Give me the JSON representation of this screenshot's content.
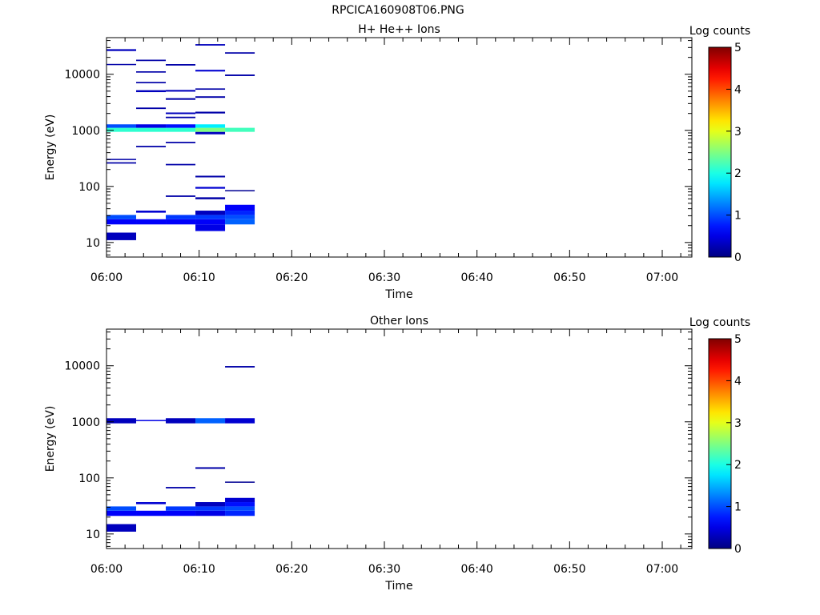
{
  "figure_title": "RPCICA160908T06.PNG",
  "chart_data": [
    {
      "type": "heatmap",
      "title": "H+ He++ Ions",
      "xlabel": "Time",
      "ylabel": "Energy (eV)",
      "yscale": "log",
      "ylim": [
        5.5,
        45000
      ],
      "x_ticks": [
        "06:00",
        "06:10",
        "06:20",
        "06:30",
        "06:40",
        "06:50",
        "07:00"
      ],
      "xlim_minutes": [
        0,
        63.2
      ],
      "y_ticks": [
        10,
        100,
        1000,
        10000
      ],
      "y_tick_labels": [
        "10",
        "100",
        "1000",
        "10000"
      ],
      "colorbar": {
        "label": "Log counts",
        "min": 0,
        "max": 5,
        "ticks": [
          "0",
          "1",
          "2",
          "3",
          "4",
          "5"
        ]
      },
      "cells": [
        {
          "t0": 0.0,
          "t1": 3.2,
          "e0": 11,
          "e1": 15,
          "v": 0.3
        },
        {
          "t0": 0.0,
          "t1": 3.2,
          "e0": 21,
          "e1": 26,
          "v": 0.6
        },
        {
          "t0": 0.0,
          "t1": 3.2,
          "e0": 26,
          "e1": 31,
          "v": 1.0
        },
        {
          "t0": 0.0,
          "t1": 3.2,
          "e0": 940,
          "e1": 1110,
          "v": 2.1
        },
        {
          "t0": 0.0,
          "t1": 3.2,
          "e0": 1110,
          "e1": 1280,
          "v": 1.0
        },
        {
          "t0": 0.0,
          "t1": 3.2,
          "e0": 255,
          "e1": 270,
          "v": 0.2
        },
        {
          "t0": 0.0,
          "t1": 3.2,
          "e0": 295,
          "e1": 310,
          "v": 0.2
        },
        {
          "t0": 0.0,
          "t1": 3.2,
          "e0": 14600,
          "e1": 15300,
          "v": 0.2
        },
        {
          "t0": 0.0,
          "t1": 3.2,
          "e0": 26000,
          "e1": 28000,
          "v": 0.3
        },
        {
          "t0": 3.2,
          "t1": 6.4,
          "e0": 21,
          "e1": 26,
          "v": 0.6
        },
        {
          "t0": 3.2,
          "t1": 6.4,
          "e0": 34,
          "e1": 37,
          "v": 0.4
        },
        {
          "t0": 3.2,
          "t1": 6.4,
          "e0": 940,
          "e1": 1110,
          "v": 2.1
        },
        {
          "t0": 3.2,
          "t1": 6.4,
          "e0": 1110,
          "e1": 1280,
          "v": 0.5
        },
        {
          "t0": 3.2,
          "t1": 6.4,
          "e0": 500,
          "e1": 530,
          "v": 0.2
        },
        {
          "t0": 3.2,
          "t1": 6.4,
          "e0": 2400,
          "e1": 2550,
          "v": 0.2
        },
        {
          "t0": 3.2,
          "t1": 6.4,
          "e0": 4800,
          "e1": 5200,
          "v": 0.3
        },
        {
          "t0": 3.2,
          "t1": 6.4,
          "e0": 6900,
          "e1": 7300,
          "v": 0.2
        },
        {
          "t0": 3.2,
          "t1": 6.4,
          "e0": 10700,
          "e1": 11300,
          "v": 0.2
        },
        {
          "t0": 3.2,
          "t1": 6.4,
          "e0": 17200,
          "e1": 18200,
          "v": 0.2
        },
        {
          "t0": 6.4,
          "t1": 9.6,
          "e0": 21,
          "e1": 26,
          "v": 0.6
        },
        {
          "t0": 6.4,
          "t1": 9.6,
          "e0": 26,
          "e1": 31,
          "v": 0.9
        },
        {
          "t0": 6.4,
          "t1": 9.6,
          "e0": 65,
          "e1": 69,
          "v": 0.2
        },
        {
          "t0": 6.4,
          "t1": 9.6,
          "e0": 238,
          "e1": 252,
          "v": 0.2
        },
        {
          "t0": 6.4,
          "t1": 9.6,
          "e0": 590,
          "e1": 625,
          "v": 0.2
        },
        {
          "t0": 6.4,
          "t1": 9.6,
          "e0": 940,
          "e1": 1110,
          "v": 2.1
        },
        {
          "t0": 6.4,
          "t1": 9.6,
          "e0": 1110,
          "e1": 1280,
          "v": 0.7
        },
        {
          "t0": 6.4,
          "t1": 9.6,
          "e0": 1650,
          "e1": 1750,
          "v": 0.2
        },
        {
          "t0": 6.4,
          "t1": 9.6,
          "e0": 1950,
          "e1": 2080,
          "v": 0.3
        },
        {
          "t0": 6.4,
          "t1": 9.6,
          "e0": 3500,
          "e1": 3750,
          "v": 0.2
        },
        {
          "t0": 6.4,
          "t1": 9.6,
          "e0": 4900,
          "e1": 5250,
          "v": 0.3
        },
        {
          "t0": 6.4,
          "t1": 9.6,
          "e0": 14300,
          "e1": 15200,
          "v": 0.2
        },
        {
          "t0": 9.6,
          "t1": 12.8,
          "e0": 16,
          "e1": 21,
          "v": 0.5
        },
        {
          "t0": 9.6,
          "t1": 12.8,
          "e0": 21,
          "e1": 26,
          "v": 0.6
        },
        {
          "t0": 9.6,
          "t1": 12.8,
          "e0": 26,
          "e1": 31,
          "v": 0.9
        },
        {
          "t0": 9.6,
          "t1": 12.8,
          "e0": 31,
          "e1": 37,
          "v": 0.3
        },
        {
          "t0": 9.6,
          "t1": 12.8,
          "e0": 59,
          "e1": 64,
          "v": 0.2
        },
        {
          "t0": 9.6,
          "t1": 12.8,
          "e0": 91,
          "e1": 98,
          "v": 0.4
        },
        {
          "t0": 9.6,
          "t1": 12.8,
          "e0": 145,
          "e1": 155,
          "v": 0.2
        },
        {
          "t0": 9.6,
          "t1": 12.8,
          "e0": 850,
          "e1": 940,
          "v": 0.3
        },
        {
          "t0": 9.6,
          "t1": 12.8,
          "e0": 940,
          "e1": 1110,
          "v": 2.5
        },
        {
          "t0": 9.6,
          "t1": 12.8,
          "e0": 1110,
          "e1": 1280,
          "v": 1.8
        },
        {
          "t0": 9.6,
          "t1": 12.8,
          "e0": 2000,
          "e1": 2150,
          "v": 0.2
        },
        {
          "t0": 9.6,
          "t1": 12.8,
          "e0": 3800,
          "e1": 4050,
          "v": 0.2
        },
        {
          "t0": 9.6,
          "t1": 12.8,
          "e0": 5300,
          "e1": 5600,
          "v": 0.2
        },
        {
          "t0": 9.6,
          "t1": 12.8,
          "e0": 11200,
          "e1": 12000,
          "v": 0.4
        },
        {
          "t0": 9.6,
          "t1": 12.8,
          "e0": 32500,
          "e1": 34500,
          "v": 0.3
        },
        {
          "t0": 12.8,
          "t1": 16.0,
          "e0": 21,
          "e1": 26,
          "v": 1.1
        },
        {
          "t0": 12.8,
          "t1": 16.0,
          "e0": 26,
          "e1": 31,
          "v": 1.0
        },
        {
          "t0": 12.8,
          "t1": 16.0,
          "e0": 31,
          "e1": 37,
          "v": 0.8
        },
        {
          "t0": 12.8,
          "t1": 16.0,
          "e0": 37,
          "e1": 47,
          "v": 0.6
        },
        {
          "t0": 12.8,
          "t1": 16.0,
          "e0": 83,
          "e1": 86,
          "v": 0.1
        },
        {
          "t0": 12.8,
          "t1": 16.0,
          "e0": 940,
          "e1": 1110,
          "v": 2.2
        },
        {
          "t0": 12.8,
          "t1": 16.0,
          "e0": 9300,
          "e1": 9900,
          "v": 0.2
        },
        {
          "t0": 12.8,
          "t1": 16.0,
          "e0": 23300,
          "e1": 24700,
          "v": 0.2
        }
      ]
    },
    {
      "type": "heatmap",
      "title": "Other Ions",
      "xlabel": "Time",
      "ylabel": "Energy (eV)",
      "yscale": "log",
      "ylim": [
        5.5,
        45000
      ],
      "x_ticks": [
        "06:00",
        "06:10",
        "06:20",
        "06:30",
        "06:40",
        "06:50",
        "07:00"
      ],
      "xlim_minutes": [
        0,
        63.2
      ],
      "y_ticks": [
        10,
        100,
        1000,
        10000
      ],
      "y_tick_labels": [
        "10",
        "100",
        "1000",
        "10000"
      ],
      "colorbar": {
        "label": "Log counts",
        "min": 0,
        "max": 5,
        "ticks": [
          "0",
          "1",
          "2",
          "3",
          "4",
          "5"
        ]
      },
      "cells": [
        {
          "t0": 0.0,
          "t1": 3.2,
          "e0": 11,
          "e1": 15,
          "v": 0.3
        },
        {
          "t0": 0.0,
          "t1": 3.2,
          "e0": 21,
          "e1": 26,
          "v": 0.6
        },
        {
          "t0": 0.0,
          "t1": 3.2,
          "e0": 26,
          "e1": 31,
          "v": 1.0
        },
        {
          "t0": 0.0,
          "t1": 3.2,
          "e0": 940,
          "e1": 1160,
          "v": 0.3
        },
        {
          "t0": 3.2,
          "t1": 6.4,
          "e0": 21,
          "e1": 26,
          "v": 0.6
        },
        {
          "t0": 3.2,
          "t1": 6.4,
          "e0": 34,
          "e1": 37,
          "v": 0.4
        },
        {
          "t0": 3.2,
          "t1": 6.4,
          "e0": 1030,
          "e1": 1080,
          "v": 0.5
        },
        {
          "t0": 6.4,
          "t1": 9.6,
          "e0": 21,
          "e1": 26,
          "v": 0.6
        },
        {
          "t0": 6.4,
          "t1": 9.6,
          "e0": 26,
          "e1": 31,
          "v": 0.9
        },
        {
          "t0": 6.4,
          "t1": 9.6,
          "e0": 65,
          "e1": 69,
          "v": 0.2
        },
        {
          "t0": 6.4,
          "t1": 9.6,
          "e0": 940,
          "e1": 1160,
          "v": 0.3
        },
        {
          "t0": 9.6,
          "t1": 12.8,
          "e0": 21,
          "e1": 26,
          "v": 0.5
        },
        {
          "t0": 9.6,
          "t1": 12.8,
          "e0": 26,
          "e1": 31,
          "v": 0.9
        },
        {
          "t0": 9.6,
          "t1": 12.8,
          "e0": 31,
          "e1": 37,
          "v": 0.3
        },
        {
          "t0": 9.6,
          "t1": 12.8,
          "e0": 145,
          "e1": 155,
          "v": 0.2
        },
        {
          "t0": 9.6,
          "t1": 12.8,
          "e0": 940,
          "e1": 1160,
          "v": 1.1
        },
        {
          "t0": 12.8,
          "t1": 16.0,
          "e0": 21,
          "e1": 26,
          "v": 0.8
        },
        {
          "t0": 12.8,
          "t1": 16.0,
          "e0": 26,
          "e1": 31,
          "v": 1.0
        },
        {
          "t0": 12.8,
          "t1": 16.0,
          "e0": 31,
          "e1": 37,
          "v": 0.7
        },
        {
          "t0": 12.8,
          "t1": 16.0,
          "e0": 37,
          "e1": 44,
          "v": 0.4
        },
        {
          "t0": 12.8,
          "t1": 16.0,
          "e0": 83,
          "e1": 86,
          "v": 0.1
        },
        {
          "t0": 12.8,
          "t1": 16.0,
          "e0": 940,
          "e1": 1160,
          "v": 0.4
        },
        {
          "t0": 12.8,
          "t1": 16.0,
          "e0": 9300,
          "e1": 9900,
          "v": 0.2
        }
      ]
    }
  ]
}
